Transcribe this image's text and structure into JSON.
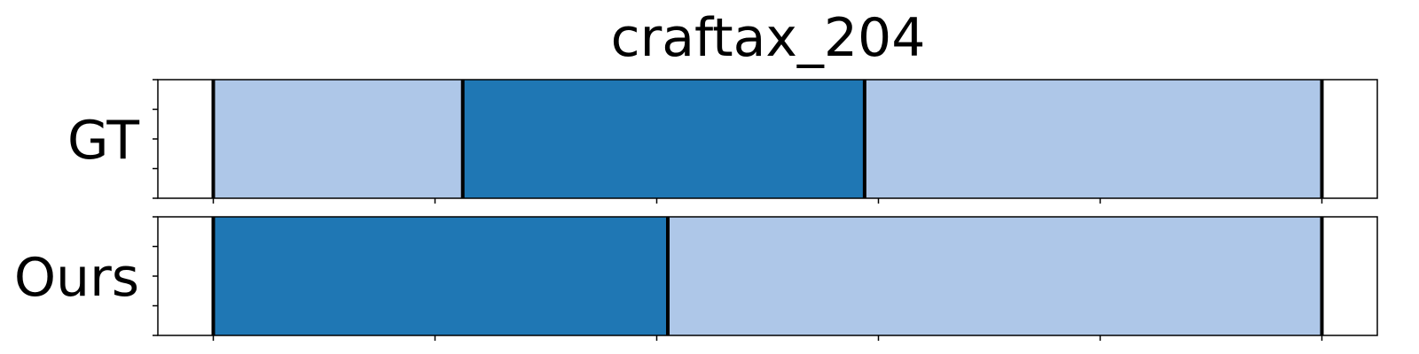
{
  "chart_data": {
    "type": "bar",
    "title": "craftax_204",
    "xlim": [
      0,
      22
    ],
    "rows": [
      {
        "label": "GT",
        "segments": [
          {
            "start": 1,
            "end": 5.5,
            "color": "#aec7e8"
          },
          {
            "start": 5.5,
            "end": 12.75,
            "color": "#1f77b4"
          },
          {
            "start": 12.75,
            "end": 21,
            "color": "#aec7e8"
          }
        ],
        "boundaries": [
          1,
          5.5,
          12.75,
          21
        ]
      },
      {
        "label": "Ours",
        "segments": [
          {
            "start": 1,
            "end": 9.2,
            "color": "#1f77b4"
          },
          {
            "start": 9.2,
            "end": 21,
            "color": "#aec7e8"
          }
        ],
        "boundaries": [
          1,
          9.2,
          21
        ]
      }
    ],
    "x_tick_positions": [
      1,
      5,
      9,
      13,
      17,
      21
    ],
    "xlabel": "",
    "ylabel": "",
    "grid": false
  }
}
